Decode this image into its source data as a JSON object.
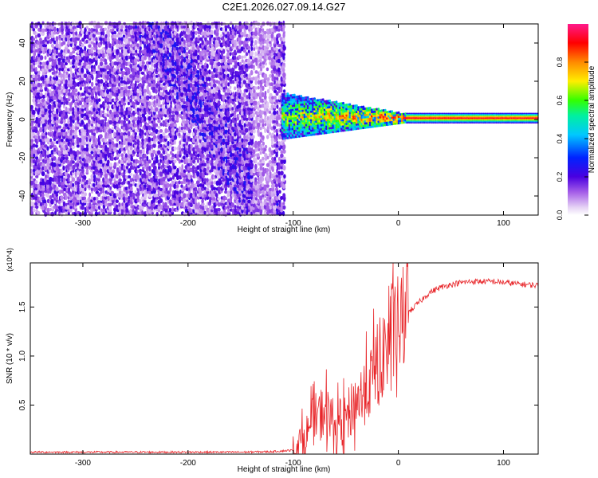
{
  "title": "C2E1.2026.027.09.14.G27",
  "chart_data": [
    {
      "type": "heatmap",
      "xlabel": "Height of straight line (km)",
      "ylabel": "Frequency (Hz)",
      "xlim": [
        -350,
        133
      ],
      "ylim": [
        -50,
        50
      ],
      "xticks": [
        -300,
        -200,
        -100,
        0,
        100
      ],
      "yticks": [
        -40,
        -20,
        0,
        20,
        40
      ],
      "colorbar": {
        "label": "Normalized spectral amplitude",
        "range": [
          0,
          1
        ],
        "ticks": [
          "0.0",
          "0.2",
          "0.4",
          "0.6",
          "0.8"
        ],
        "colormap": "rainbow (white, violet, blue, cyan, green, yellow, orange, red, magenta)"
      },
      "regions": [
        {
          "x_range": [
            -350,
            -110
          ],
          "freq_range": [
            -50,
            50
          ],
          "amplitude": "low (0.0-0.25), scattered noise"
        },
        {
          "x_range": [
            -110,
            10
          ],
          "freq_range": [
            -12,
            15
          ],
          "amplitude": "0.2-0.8, signal acquisition"
        },
        {
          "x_range": [
            10,
            133
          ],
          "freq_range": [
            -1,
            3
          ],
          "amplitude": "high (~0.85-0.95), stable tone near 1 Hz"
        }
      ]
    },
    {
      "type": "line",
      "xlabel": "Height of straight line (km)",
      "ylabel": "SNR (10 * v/v)",
      "yscale_label": "(x10^4)",
      "xlim": [
        -350,
        133
      ],
      "ylim": [
        0,
        1.95
      ],
      "xticks": [
        -300,
        -200,
        -100,
        0,
        100
      ],
      "yticks": [
        "0.5",
        "1.0",
        "1.5"
      ],
      "series": [
        {
          "color": "#e8262a",
          "x": [
            -350,
            -300,
            -250,
            -200,
            -150,
            -120,
            -100,
            -90,
            -80,
            -70,
            -60,
            -50,
            -40,
            -30,
            -20,
            -10,
            0,
            10,
            20,
            30,
            40,
            50,
            60,
            70,
            80,
            90,
            100,
            110,
            120,
            133
          ],
          "values": [
            0.02,
            0.02,
            0.02,
            0.02,
            0.02,
            0.025,
            0.04,
            0.15,
            0.35,
            0.45,
            0.3,
            0.35,
            0.55,
            0.65,
            0.9,
            1.15,
            1.3,
            1.45,
            1.55,
            1.65,
            1.7,
            1.73,
            1.75,
            1.76,
            1.76,
            1.76,
            1.75,
            1.74,
            1.73,
            1.72
          ]
        }
      ]
    }
  ]
}
